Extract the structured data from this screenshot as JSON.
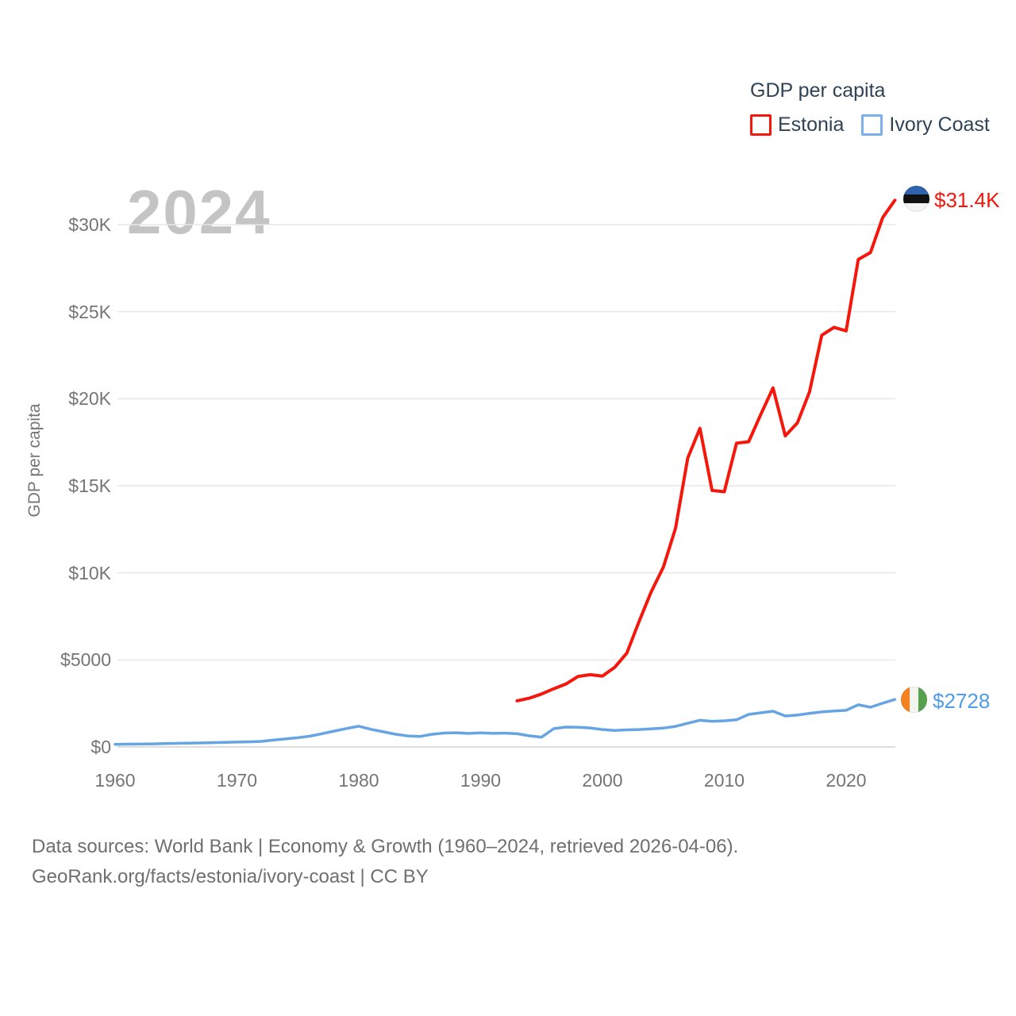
{
  "legend": {
    "title": "GDP per capita",
    "items": [
      {
        "label": "Estonia",
        "color": "#f5170c"
      },
      {
        "label": "Ivory Coast",
        "color": "#79b0ec"
      }
    ]
  },
  "watermark": "2024",
  "end_labels": {
    "estonia": {
      "value": "$31.4K",
      "color": "#f5170c",
      "flag": "estonia-flag"
    },
    "ivory_coast": {
      "value": "$2728",
      "color": "#4f9ce8",
      "flag": "ivory-coast-flag"
    }
  },
  "axes": {
    "y_title": "GDP per capita",
    "y_ticks": [
      {
        "label": "$0",
        "value": 0
      },
      {
        "label": "$5000",
        "value": 5000
      },
      {
        "label": "$10K",
        "value": 10000
      },
      {
        "label": "$15K",
        "value": 15000
      },
      {
        "label": "$20K",
        "value": 20000
      },
      {
        "label": "$25K",
        "value": 25000
      },
      {
        "label": "$30K",
        "value": 30000
      }
    ],
    "x_ticks": [
      {
        "label": "1960",
        "value": 1960
      },
      {
        "label": "1970",
        "value": 1970
      },
      {
        "label": "1980",
        "value": 1980
      },
      {
        "label": "1990",
        "value": 1990
      },
      {
        "label": "2000",
        "value": 2000
      },
      {
        "label": "2010",
        "value": 2010
      },
      {
        "label": "2020",
        "value": 2020
      }
    ]
  },
  "footer": {
    "line1": "Data sources: World Bank | Economy & Growth (1960–2024, retrieved 2026-04-06).",
    "line2": "GeoRank.org/facts/estonia/ivory-coast | CC BY"
  },
  "chart_data": {
    "type": "line",
    "title": "GDP per capita",
    "xlabel": "",
    "ylabel": "GDP per capita",
    "x_range": [
      1960,
      2024
    ],
    "ylim": [
      0,
      31500
    ],
    "grid": "horizontal",
    "legend_position": "top-right",
    "current_year_label": "2024",
    "series": [
      {
        "name": "Estonia",
        "color": "#f5170c",
        "end_label": "$31.4K",
        "points": [
          [
            1993,
            2650
          ],
          [
            1994,
            2800
          ],
          [
            1995,
            3040
          ],
          [
            1996,
            3340
          ],
          [
            1997,
            3610
          ],
          [
            1998,
            4050
          ],
          [
            1999,
            4150
          ],
          [
            2000,
            4070
          ],
          [
            2001,
            4570
          ],
          [
            2002,
            5390
          ],
          [
            2003,
            7190
          ],
          [
            2004,
            8910
          ],
          [
            2005,
            10330
          ],
          [
            2006,
            12570
          ],
          [
            2007,
            16580
          ],
          [
            2008,
            18300
          ],
          [
            2009,
            14730
          ],
          [
            2010,
            14660
          ],
          [
            2011,
            17450
          ],
          [
            2012,
            17530
          ],
          [
            2013,
            19100
          ],
          [
            2014,
            20620
          ],
          [
            2015,
            17870
          ],
          [
            2016,
            18610
          ],
          [
            2017,
            20400
          ],
          [
            2018,
            23650
          ],
          [
            2019,
            24100
          ],
          [
            2020,
            23900
          ],
          [
            2021,
            28000
          ],
          [
            2022,
            28400
          ],
          [
            2023,
            30400
          ],
          [
            2024,
            31400
          ]
        ]
      },
      {
        "name": "Ivory Coast",
        "color": "#66a4e4",
        "end_label": "$2728",
        "points": [
          [
            1960,
            150
          ],
          [
            1961,
            158
          ],
          [
            1962,
            162
          ],
          [
            1963,
            175
          ],
          [
            1964,
            190
          ],
          [
            1965,
            205
          ],
          [
            1966,
            215
          ],
          [
            1967,
            230
          ],
          [
            1968,
            245
          ],
          [
            1969,
            260
          ],
          [
            1970,
            278
          ],
          [
            1971,
            292
          ],
          [
            1972,
            320
          ],
          [
            1973,
            390
          ],
          [
            1974,
            460
          ],
          [
            1975,
            530
          ],
          [
            1976,
            620
          ],
          [
            1977,
            760
          ],
          [
            1978,
            910
          ],
          [
            1979,
            1060
          ],
          [
            1980,
            1190
          ],
          [
            1981,
            1010
          ],
          [
            1982,
            870
          ],
          [
            1983,
            730
          ],
          [
            1984,
            635
          ],
          [
            1985,
            600
          ],
          [
            1986,
            725
          ],
          [
            1987,
            800
          ],
          [
            1988,
            815
          ],
          [
            1989,
            775
          ],
          [
            1990,
            810
          ],
          [
            1991,
            780
          ],
          [
            1992,
            795
          ],
          [
            1993,
            755
          ],
          [
            1994,
            640
          ],
          [
            1995,
            560
          ],
          [
            1996,
            1050
          ],
          [
            1997,
            1140
          ],
          [
            1998,
            1130
          ],
          [
            1999,
            1090
          ],
          [
            2000,
            1000
          ],
          [
            2001,
            950
          ],
          [
            2002,
            980
          ],
          [
            2003,
            1000
          ],
          [
            2004,
            1040
          ],
          [
            2005,
            1080
          ],
          [
            2006,
            1180
          ],
          [
            2007,
            1360
          ],
          [
            2008,
            1530
          ],
          [
            2009,
            1470
          ],
          [
            2010,
            1500
          ],
          [
            2011,
            1560
          ],
          [
            2012,
            1870
          ],
          [
            2013,
            1960
          ],
          [
            2014,
            2050
          ],
          [
            2015,
            1780
          ],
          [
            2016,
            1830
          ],
          [
            2017,
            1930
          ],
          [
            2018,
            2010
          ],
          [
            2019,
            2060
          ],
          [
            2020,
            2100
          ],
          [
            2021,
            2420
          ],
          [
            2022,
            2280
          ],
          [
            2023,
            2510
          ],
          [
            2024,
            2728
          ]
        ]
      }
    ]
  }
}
